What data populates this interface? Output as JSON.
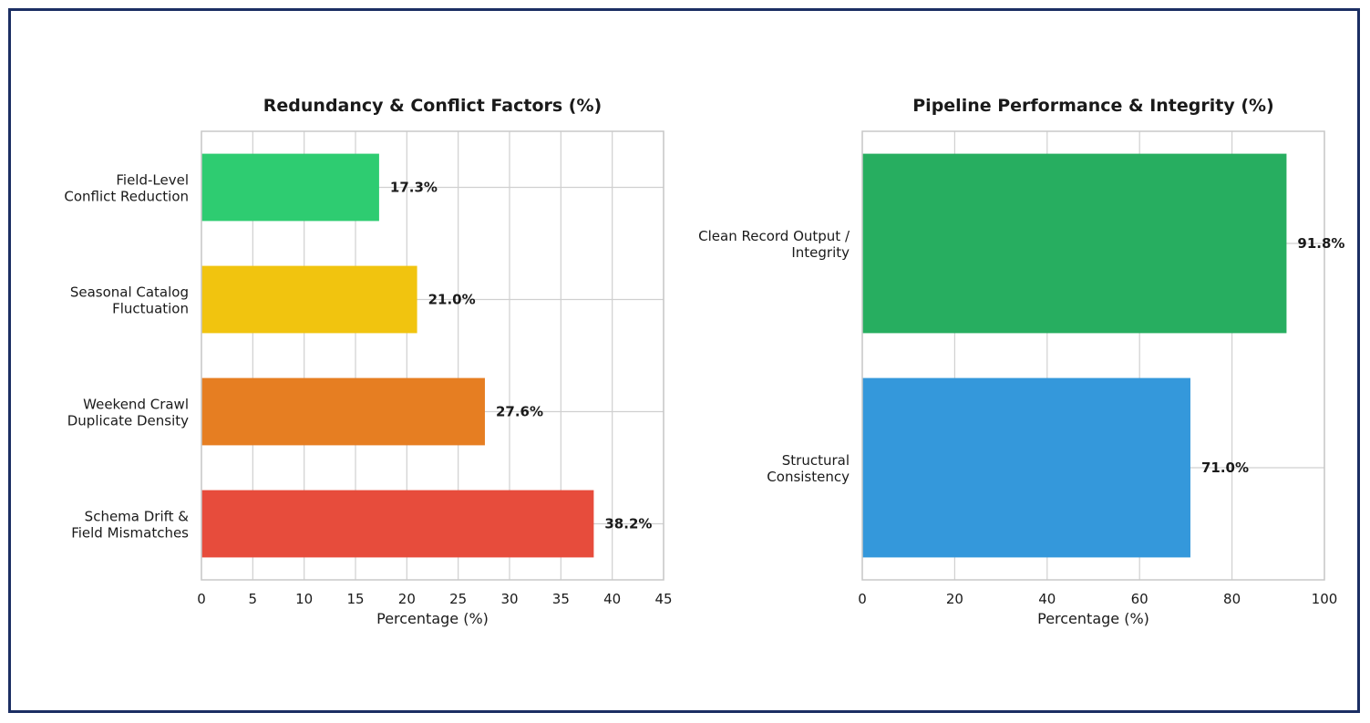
{
  "chart_data": [
    {
      "type": "bar",
      "orientation": "horizontal",
      "title": "Redundancy & Conflict Factors (%)",
      "xlabel": "Percentage (%)",
      "ylabel": "",
      "xlim": [
        0,
        45
      ],
      "xticks": [
        0,
        5,
        10,
        15,
        20,
        25,
        30,
        35,
        40,
        45
      ],
      "grid": true,
      "categories": [
        [
          "Field-Level",
          "Conflict Reduction"
        ],
        [
          "Seasonal Catalog",
          "Fluctuation"
        ],
        [
          "Weekend Crawl",
          "Duplicate Density"
        ],
        [
          "Schema Drift &",
          "Field Mismatches"
        ]
      ],
      "values": [
        17.3,
        21.0,
        27.6,
        38.2
      ],
      "data_labels": [
        "17.3%",
        "21.0%",
        "27.6%",
        "38.2%"
      ],
      "colors": [
        "#2ecc71",
        "#f1c40f",
        "#e67e22",
        "#e74c3c"
      ]
    },
    {
      "type": "bar",
      "orientation": "horizontal",
      "title": "Pipeline Performance & Integrity (%)",
      "xlabel": "Percentage (%)",
      "ylabel": "",
      "xlim": [
        0,
        100
      ],
      "xticks": [
        0,
        20,
        40,
        60,
        80,
        100
      ],
      "grid": true,
      "categories": [
        [
          "Clean Record Output /",
          "Integrity"
        ],
        [
          "Structural",
          "Consistency"
        ]
      ],
      "values": [
        91.8,
        71.0
      ],
      "data_labels": [
        "91.8%",
        "71.0%"
      ],
      "colors": [
        "#27ae60",
        "#3498db"
      ]
    }
  ],
  "colors": {
    "frame_border": "#1b2e63",
    "grid": "#d0d0d0",
    "axis": "#c8c8c8"
  }
}
